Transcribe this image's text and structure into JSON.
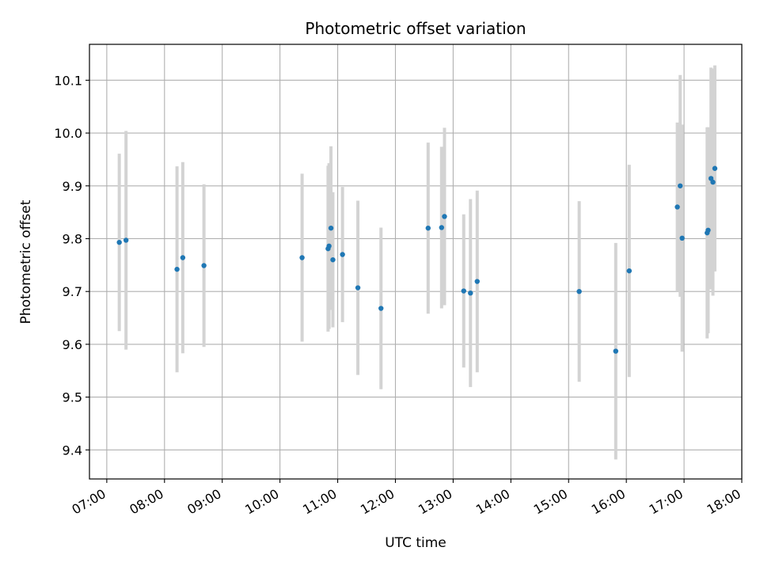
{
  "chart_data": {
    "type": "scatter",
    "title": "Photometric offset variation",
    "xlabel": "UTC time",
    "ylabel": "Photometric offset",
    "grid": true,
    "xlim": [
      "06:42",
      "18:00"
    ],
    "ylim": [
      9.345,
      10.168
    ],
    "x_ticks": [
      "07:00",
      "08:00",
      "09:00",
      "10:00",
      "11:00",
      "12:00",
      "13:00",
      "14:00",
      "15:00",
      "16:00",
      "17:00",
      "18:00"
    ],
    "y_ticks": [
      "9.4",
      "9.5",
      "9.6",
      "9.7",
      "9.8",
      "9.9",
      "10.0",
      "10.1"
    ],
    "y_tick_values": [
      9.4,
      9.5,
      9.6,
      9.7,
      9.8,
      9.9,
      10.0,
      10.1
    ],
    "colors": {
      "point": "#1f77b4",
      "errorbar": "#d3d3d3",
      "grid": "#b0b0b0"
    },
    "series": [
      {
        "points": [
          {
            "x": "07:13",
            "y": 9.793,
            "yerr": 0.168
          },
          {
            "x": "07:20",
            "y": 9.797,
            "yerr": 0.207
          },
          {
            "x": "08:13",
            "y": 9.742,
            "yerr": 0.195
          },
          {
            "x": "08:19",
            "y": 9.764,
            "yerr": 0.181
          },
          {
            "x": "08:41",
            "y": 9.749,
            "yerr": 0.154
          },
          {
            "x": "10:23",
            "y": 9.764,
            "yerr": 0.159
          },
          {
            "x": "10:50",
            "y": 9.781,
            "yerr": 0.157
          },
          {
            "x": "10:51",
            "y": 9.786,
            "yerr": 0.157
          },
          {
            "x": "10:53",
            "y": 9.82,
            "yerr": 0.155
          },
          {
            "x": "10:55",
            "y": 9.76,
            "yerr": 0.128
          },
          {
            "x": "11:05",
            "y": 9.77,
            "yerr": 0.128
          },
          {
            "x": "11:21",
            "y": 9.707,
            "yerr": 0.165
          },
          {
            "x": "11:45",
            "y": 9.668,
            "yerr": 0.153
          },
          {
            "x": "12:34",
            "y": 9.82,
            "yerr": 0.162
          },
          {
            "x": "12:48",
            "y": 9.821,
            "yerr": 0.153
          },
          {
            "x": "12:51",
            "y": 9.842,
            "yerr": 0.168
          },
          {
            "x": "13:11",
            "y": 9.701,
            "yerr": 0.145
          },
          {
            "x": "13:18",
            "y": 9.697,
            "yerr": 0.178
          },
          {
            "x": "13:25",
            "y": 9.719,
            "yerr": 0.172
          },
          {
            "x": "15:11",
            "y": 9.7,
            "yerr": 0.171
          },
          {
            "x": "15:49",
            "y": 9.587,
            "yerr": 0.205
          },
          {
            "x": "16:03",
            "y": 9.739,
            "yerr": 0.201
          },
          {
            "x": "16:53",
            "y": 9.86,
            "yerr": 0.16
          },
          {
            "x": "16:56",
            "y": 9.9,
            "yerr": 0.21
          },
          {
            "x": "16:58",
            "y": 9.801,
            "yerr": 0.215
          },
          {
            "x": "17:24",
            "y": 9.811,
            "yerr": 0.2
          },
          {
            "x": "17:25",
            "y": 9.816,
            "yerr": 0.195
          },
          {
            "x": "17:28",
            "y": 9.914,
            "yerr": 0.21
          },
          {
            "x": "17:30",
            "y": 9.907,
            "yerr": 0.215
          },
          {
            "x": "17:32",
            "y": 9.933,
            "yerr": 0.195
          }
        ]
      }
    ]
  }
}
